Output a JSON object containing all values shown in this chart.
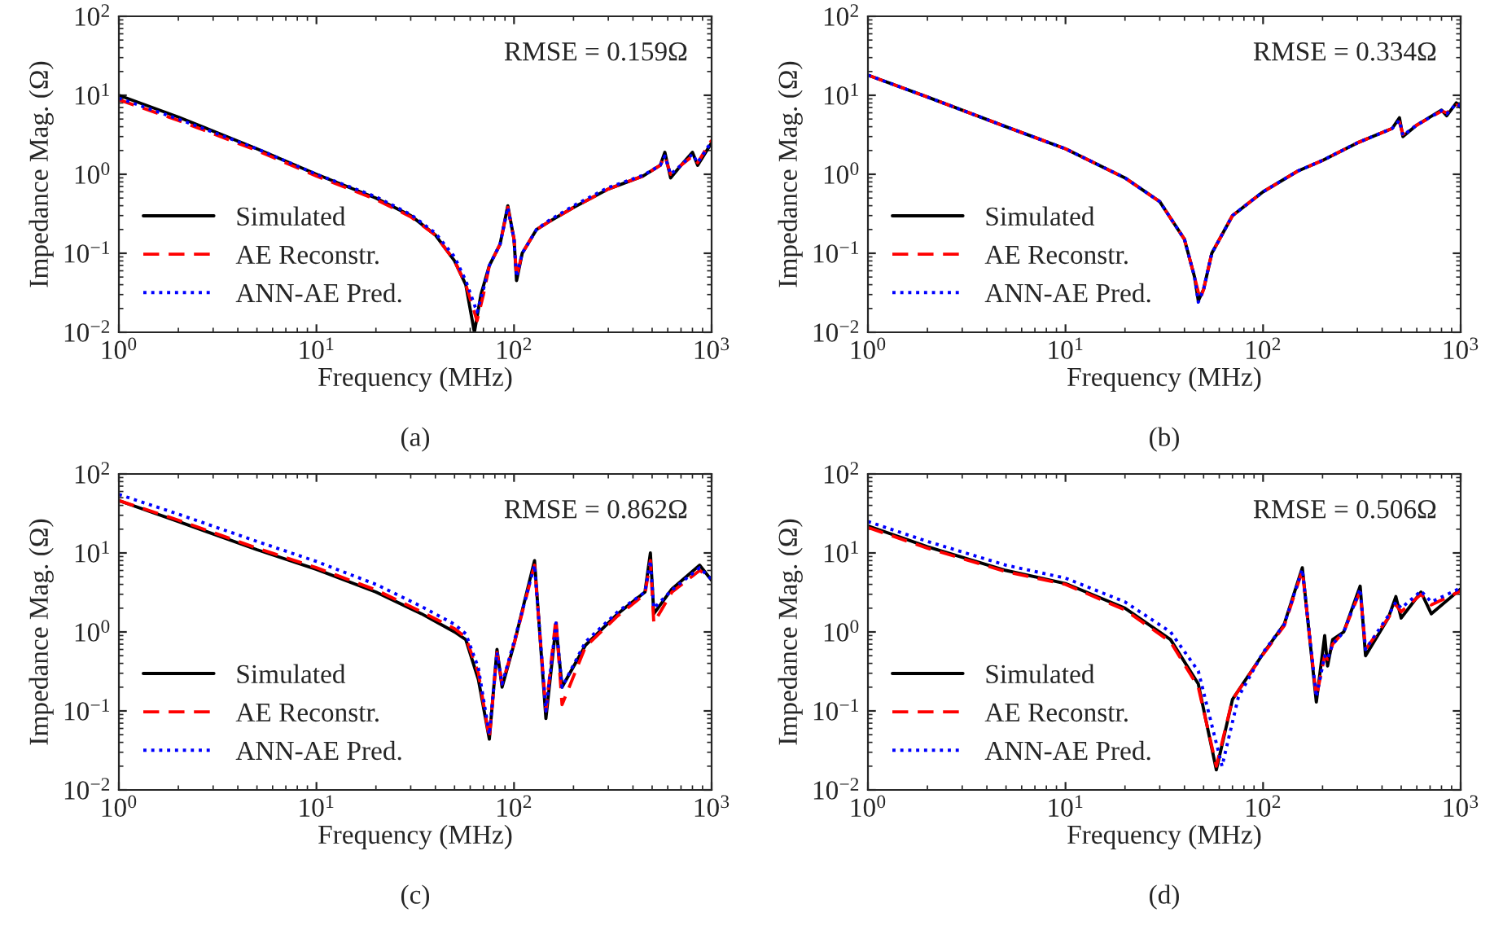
{
  "chart_data": [
    {
      "type": "line",
      "xlabel": "Frequency (MHz)",
      "ylabel": "Impedance Mag. (Ω)",
      "log": "xy",
      "grid": false,
      "legend": "bottom left",
      "xlim": [
        1,
        1000
      ],
      "ylim": [
        0.01,
        100
      ],
      "xticks": [
        {
          "value": 1,
          "label": "10$^{0}$"
        },
        {
          "value": 10,
          "label": "10$^{1}$"
        },
        {
          "value": 100,
          "label": "10$^{2}$"
        },
        {
          "value": 1000,
          "label": "10$^{3}$"
        }
      ],
      "yticks": [
        {
          "value": 0.01,
          "label": "10$^{−2}$"
        },
        {
          "value": 0.1,
          "label": "10$^{−1}$"
        },
        {
          "value": 1,
          "label": "10$^{0}$"
        },
        {
          "value": 10,
          "label": "10$^{1}$"
        },
        {
          "value": 100,
          "label": "10$^{2}$"
        }
      ],
      "annotations": [
        "RMSE = 0.159Ω",
        "(a)"
      ],
      "series": [
        {
          "name": "Simulated",
          "color": "#000000",
          "line_style": "solid",
          "x": [
            1,
            2,
            5,
            10,
            20,
            30,
            40,
            50,
            57,
            63,
            68,
            75,
            85,
            93,
            100,
            103,
            110,
            130,
            150,
            200,
            300,
            450,
            550,
            580,
            620,
            700,
            800,
            850,
            1000
          ],
          "values": [
            10,
            5.3,
            2.1,
            1.0,
            0.5,
            0.3,
            0.17,
            0.08,
            0.04,
            0.01,
            0.03,
            0.07,
            0.13,
            0.4,
            0.15,
            0.045,
            0.1,
            0.2,
            0.25,
            0.38,
            0.65,
            0.95,
            1.3,
            1.9,
            0.9,
            1.3,
            1.9,
            1.3,
            2.5
          ]
        },
        {
          "name": "AE Reconstr.",
          "color": "#ff0000",
          "line_style": "dashed",
          "x": [
            1,
            2,
            5,
            10,
            20,
            30,
            40,
            50,
            57,
            65,
            70,
            75,
            85,
            93,
            100,
            103,
            110,
            130,
            150,
            200,
            300,
            450,
            550,
            580,
            620,
            700,
            800,
            850,
            1000
          ],
          "values": [
            8.8,
            4.8,
            2.0,
            0.95,
            0.48,
            0.29,
            0.17,
            0.08,
            0.04,
            0.014,
            0.03,
            0.07,
            0.13,
            0.38,
            0.15,
            0.05,
            0.1,
            0.2,
            0.25,
            0.38,
            0.65,
            0.95,
            1.3,
            1.7,
            1.0,
            1.3,
            1.7,
            1.4,
            2.7
          ]
        },
        {
          "name": "ANN-AE Pred.",
          "color": "#0000ff",
          "line_style": "dotted",
          "x": [
            1,
            2,
            5,
            10,
            20,
            30,
            40,
            50,
            57,
            65,
            70,
            75,
            85,
            93,
            100,
            103,
            110,
            130,
            150,
            200,
            300,
            450,
            550,
            580,
            620,
            700,
            800,
            850,
            1000
          ],
          "values": [
            9.2,
            5.0,
            2.1,
            1.0,
            0.52,
            0.31,
            0.18,
            0.09,
            0.045,
            0.018,
            0.035,
            0.07,
            0.13,
            0.38,
            0.15,
            0.05,
            0.1,
            0.2,
            0.26,
            0.4,
            0.68,
            0.97,
            1.3,
            1.7,
            1.0,
            1.3,
            1.8,
            1.4,
            2.6
          ]
        }
      ]
    },
    {
      "type": "line",
      "xlabel": "Frequency (MHz)",
      "ylabel": "Impedance Mag. (Ω)",
      "log": "xy",
      "grid": false,
      "legend": "bottom left",
      "xlim": [
        1,
        1000
      ],
      "ylim": [
        0.01,
        100
      ],
      "xticks": [
        {
          "value": 1,
          "label": "10$^{0}$"
        },
        {
          "value": 10,
          "label": "10$^{1}$"
        },
        {
          "value": 100,
          "label": "10$^{2}$"
        },
        {
          "value": 1000,
          "label": "10$^{3}$"
        }
      ],
      "yticks": [
        {
          "value": 0.01,
          "label": "10$^{−2}$"
        },
        {
          "value": 0.1,
          "label": "10$^{−1}$"
        },
        {
          "value": 1,
          "label": "10$^{0}$"
        },
        {
          "value": 10,
          "label": "10$^{1}$"
        },
        {
          "value": 100,
          "label": "10$^{2}$"
        }
      ],
      "annotations": [
        "RMSE = 0.334Ω",
        "(b)"
      ],
      "series": [
        {
          "name": "Simulated",
          "color": "#000000",
          "line_style": "solid",
          "x": [
            1,
            2,
            5,
            10,
            20,
            30,
            40,
            45,
            47,
            50,
            55,
            70,
            100,
            150,
            200,
            300,
            450,
            490,
            510,
            600,
            800,
            850,
            950,
            1000
          ],
          "values": [
            18,
            9.5,
            4.0,
            2.1,
            0.9,
            0.45,
            0.15,
            0.05,
            0.025,
            0.035,
            0.1,
            0.3,
            0.6,
            1.1,
            1.5,
            2.5,
            3.8,
            5.2,
            3.0,
            4.2,
            6.5,
            5.5,
            8.0,
            7.0
          ]
        },
        {
          "name": "AE Reconstr.",
          "color": "#ff0000",
          "line_style": "dashed",
          "x": [
            1,
            2,
            5,
            10,
            20,
            30,
            40,
            45,
            48,
            50,
            55,
            70,
            100,
            150,
            200,
            300,
            450,
            490,
            510,
            600,
            800,
            850,
            950,
            1000
          ],
          "values": [
            18,
            9.5,
            4.0,
            2.1,
            0.9,
            0.45,
            0.15,
            0.05,
            0.026,
            0.035,
            0.1,
            0.3,
            0.6,
            1.1,
            1.5,
            2.5,
            3.8,
            4.6,
            3.2,
            4.2,
            6.3,
            6.0,
            7.5,
            7.5
          ]
        },
        {
          "name": "ANN-AE Pred.",
          "color": "#0000ff",
          "line_style": "dotted",
          "x": [
            1,
            2,
            5,
            10,
            20,
            30,
            40,
            45,
            47,
            50,
            55,
            70,
            100,
            150,
            200,
            300,
            450,
            490,
            510,
            600,
            800,
            850,
            950,
            1000
          ],
          "values": [
            18,
            9.5,
            4.0,
            2.1,
            0.9,
            0.45,
            0.15,
            0.05,
            0.024,
            0.035,
            0.1,
            0.3,
            0.6,
            1.1,
            1.5,
            2.5,
            3.8,
            4.8,
            3.1,
            4.2,
            6.4,
            5.8,
            7.8,
            7.3
          ]
        }
      ]
    },
    {
      "type": "line",
      "xlabel": "Frequency (MHz)",
      "ylabel": "Impedance Mag. (Ω)",
      "log": "xy",
      "grid": false,
      "legend": "bottom left",
      "xlim": [
        1,
        1000
      ],
      "ylim": [
        0.01,
        100
      ],
      "xticks": [
        {
          "value": 1,
          "label": "10$^{0}$"
        },
        {
          "value": 10,
          "label": "10$^{1}$"
        },
        {
          "value": 100,
          "label": "10$^{2}$"
        },
        {
          "value": 1000,
          "label": "10$^{3}$"
        }
      ],
      "yticks": [
        {
          "value": 0.01,
          "label": "10$^{−2}$"
        },
        {
          "value": 0.1,
          "label": "10$^{−1}$"
        },
        {
          "value": 1,
          "label": "10$^{0}$"
        },
        {
          "value": 10,
          "label": "10$^{1}$"
        },
        {
          "value": 100,
          "label": "10$^{2}$"
        }
      ],
      "annotations": [
        "RMSE = 0.862Ω",
        "(c)"
      ],
      "series": [
        {
          "name": "Simulated",
          "color": "#000000",
          "line_style": "solid",
          "x": [
            1,
            2,
            5,
            10,
            20,
            34,
            50,
            57,
            66,
            75,
            82,
            87,
            100,
            127,
            145,
            163,
            175,
            230,
            335,
            460,
            490,
            510,
            630,
            870,
            1000
          ],
          "values": [
            46,
            25,
            11,
            6.2,
            3.2,
            1.7,
            1.0,
            0.8,
            0.25,
            0.044,
            0.6,
            0.2,
            0.7,
            8.0,
            0.08,
            1.2,
            0.2,
            0.68,
            1.7,
            3.2,
            10,
            1.7,
            3.5,
            7.0,
            4.5
          ]
        },
        {
          "name": "AE Reconstr.",
          "color": "#ff0000",
          "line_style": "dashed",
          "x": [
            1,
            2,
            5,
            10,
            20,
            34,
            50,
            57,
            66,
            75,
            82,
            87,
            100,
            127,
            145,
            163,
            175,
            230,
            335,
            460,
            490,
            510,
            630,
            870,
            1000
          ],
          "values": [
            46,
            26,
            11.5,
            6.5,
            3.4,
            1.8,
            1.1,
            0.85,
            0.3,
            0.045,
            0.55,
            0.22,
            0.7,
            7.0,
            0.1,
            1.5,
            0.12,
            0.65,
            1.6,
            3.0,
            8.0,
            1.3,
            3.2,
            6.0,
            4.8
          ]
        },
        {
          "name": "ANN-AE Pred.",
          "color": "#0000ff",
          "line_style": "dotted",
          "x": [
            1,
            2,
            5,
            10,
            20,
            34,
            50,
            57,
            66,
            75,
            82,
            87,
            100,
            127,
            145,
            163,
            175,
            230,
            335,
            460,
            490,
            510,
            630,
            870,
            1000
          ],
          "values": [
            55,
            31,
            14,
            7.8,
            4.0,
            2.1,
            1.25,
            0.95,
            0.35,
            0.05,
            0.55,
            0.22,
            0.75,
            7.0,
            0.1,
            1.3,
            0.2,
            0.75,
            1.8,
            3.2,
            8.0,
            2.0,
            3.4,
            6.5,
            4.6
          ]
        }
      ]
    },
    {
      "type": "line",
      "xlabel": "Frequency (MHz)",
      "ylabel": "Impedance Mag. (Ω)",
      "log": "xy",
      "grid": false,
      "legend": "bottom left",
      "xlim": [
        1,
        1000
      ],
      "ylim": [
        0.01,
        100
      ],
      "xticks": [
        {
          "value": 1,
          "label": "10$^{0}$"
        },
        {
          "value": 10,
          "label": "10$^{1}$"
        },
        {
          "value": 100,
          "label": "10$^{2}$"
        },
        {
          "value": 1000,
          "label": "10$^{3}$"
        }
      ],
      "yticks": [
        {
          "value": 0.01,
          "label": "10$^{−2}$"
        },
        {
          "value": 0.1,
          "label": "10$^{−1}$"
        },
        {
          "value": 1,
          "label": "10$^{0}$"
        },
        {
          "value": 10,
          "label": "10$^{1}$"
        },
        {
          "value": 100,
          "label": "10$^{2}$"
        }
      ],
      "annotations": [
        "RMSE = 0.506Ω",
        "(d)"
      ],
      "series": [
        {
          "name": "Simulated",
          "color": "#000000",
          "line_style": "solid",
          "x": [
            1,
            2,
            5,
            10,
            20,
            34,
            47,
            58,
            70,
            100,
            128,
            158,
            186,
            205,
            212,
            225,
            256,
            310,
            330,
            430,
            470,
            500,
            630,
            710,
            1000
          ],
          "values": [
            22,
            12,
            6.0,
            4.1,
            2.0,
            0.8,
            0.22,
            0.018,
            0.14,
            0.53,
            1.26,
            6.5,
            0.13,
            0.9,
            0.37,
            0.8,
            1.0,
            3.8,
            0.5,
            1.5,
            2.8,
            1.5,
            3.2,
            1.7,
            3.5
          ]
        },
        {
          "name": "AE Reconstr.",
          "color": "#ff0000",
          "line_style": "dashed",
          "x": [
            1,
            2,
            5,
            10,
            20,
            34,
            47,
            58,
            70,
            100,
            128,
            158,
            186,
            205,
            212,
            225,
            256,
            310,
            330,
            430,
            470,
            500,
            630,
            710,
            1000
          ],
          "values": [
            21,
            11.5,
            5.8,
            4.0,
            1.9,
            0.75,
            0.2,
            0.02,
            0.14,
            0.52,
            1.2,
            6.0,
            0.15,
            0.5,
            0.45,
            0.7,
            1.0,
            3.3,
            0.6,
            1.5,
            2.2,
            1.8,
            3.0,
            2.2,
            3.3
          ]
        },
        {
          "name": "ANN-AE Pred.",
          "color": "#0000ff",
          "line_style": "dotted",
          "x": [
            1,
            2,
            5,
            10,
            20,
            34,
            47,
            62,
            75,
            100,
            128,
            158,
            186,
            205,
            212,
            225,
            256,
            310,
            330,
            430,
            470,
            500,
            630,
            710,
            1000
          ],
          "values": [
            25,
            14,
            7.0,
            4.8,
            2.4,
            1.0,
            0.32,
            0.02,
            0.15,
            0.55,
            1.25,
            6.2,
            0.15,
            0.5,
            0.45,
            0.7,
            1.0,
            3.5,
            0.6,
            1.6,
            2.4,
            2.0,
            3.3,
            2.4,
            3.6
          ]
        }
      ]
    }
  ]
}
